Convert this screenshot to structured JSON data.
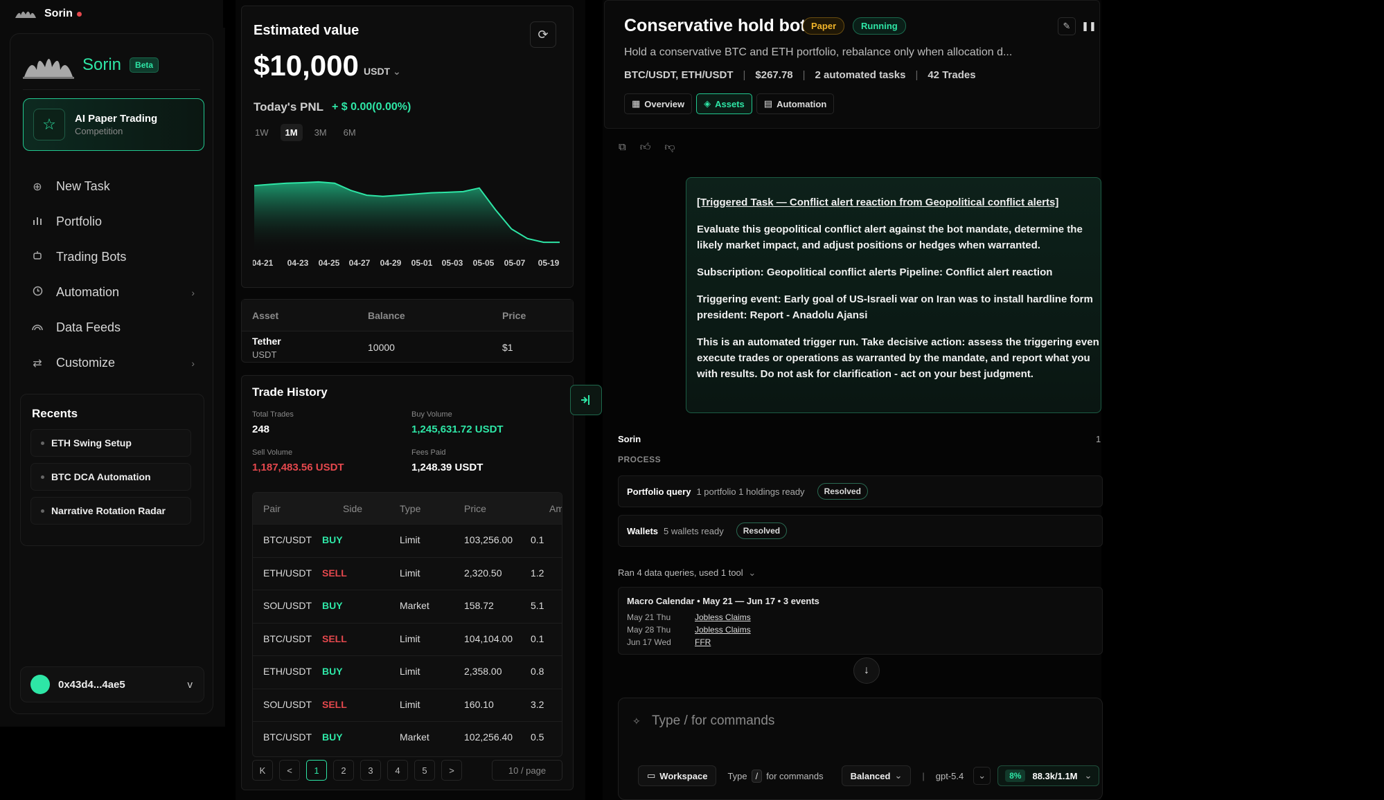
{
  "app": {
    "brand": "Sorin"
  },
  "sidebar": {
    "name": "Sorin",
    "beta": "Beta",
    "promo": {
      "title": "AI Paper Trading",
      "subtitle": "Competition"
    },
    "nav": [
      {
        "label": "New Task",
        "icon": "plus-circle-icon"
      },
      {
        "label": "Portfolio",
        "icon": "bar-chart-icon"
      },
      {
        "label": "Trading Bots",
        "icon": "bot-icon"
      },
      {
        "label": "Automation",
        "icon": "clock-icon",
        "chevron": "›"
      },
      {
        "label": "Data Feeds",
        "icon": "feed-icon"
      },
      {
        "label": "Customize",
        "icon": "sliders-icon",
        "chevron": "›"
      }
    ],
    "recents_title": "Recents",
    "recents": [
      "ETH Swing Setup",
      "BTC DCA Automation",
      "Narrative Rotation Radar"
    ],
    "wallet": {
      "address": "0x43d4...4ae5",
      "chevron": "v"
    }
  },
  "estimated": {
    "title": "Estimated value",
    "value": "$10,000",
    "currency": "USDT",
    "pnl_label": "Today's PNL",
    "pnl_value": "+ $ 0.00(0.00%)",
    "ranges": [
      "1W",
      "1M",
      "3M",
      "6M"
    ],
    "active_range": "1M"
  },
  "chart_data": {
    "type": "area",
    "x": [
      "04-21",
      "04-22",
      "04-23",
      "04-24",
      "04-25",
      "04-26",
      "04-27",
      "04-28",
      "04-29",
      "04-30",
      "05-01",
      "05-02",
      "05-03",
      "05-04",
      "05-05",
      "05-06",
      "05-07",
      "05-08",
      "05-09",
      "05-19"
    ],
    "values": [
      10080,
      10085,
      10090,
      10092,
      10095,
      10090,
      10060,
      10040,
      10035,
      10040,
      10045,
      10050,
      10052,
      10055,
      10070,
      9980,
      9900,
      9860,
      9845,
      9845
    ],
    "tick_labels": [
      "04-21",
      "04-23",
      "04-25",
      "04-27",
      "04-29",
      "05-01",
      "05-03",
      "05-05",
      "05-07",
      "05-19"
    ],
    "color": "#2ee6a6",
    "grid": false
  },
  "assets_table": {
    "headers": [
      "Asset",
      "Balance",
      "Price"
    ],
    "rows": [
      {
        "asset": "Tether",
        "symbol": "USDT",
        "balance": "10000",
        "price": "$1"
      }
    ]
  },
  "trade_history": {
    "title": "Trade History",
    "stats": {
      "total_trades_label": "Total Trades",
      "total_trades": "248",
      "buy_volume_label": "Buy Volume",
      "buy_volume": "1,245,631.72 USDT",
      "sell_volume_label": "Sell Volume",
      "sell_volume": "1,187,483.56 USDT",
      "fees_label": "Fees Paid",
      "fees": "1,248.39 USDT"
    },
    "headers": [
      "Pair",
      "Side",
      "Type",
      "Price",
      "Am"
    ],
    "rows": [
      {
        "pair": "BTC/USDT",
        "side": "BUY",
        "type": "Limit",
        "price": "103,256.00",
        "amount": "0.1"
      },
      {
        "pair": "ETH/USDT",
        "side": "SELL",
        "type": "Limit",
        "price": "2,320.50",
        "amount": "1.2"
      },
      {
        "pair": "SOL/USDT",
        "side": "BUY",
        "type": "Market",
        "price": "158.72",
        "amount": "5.1"
      },
      {
        "pair": "BTC/USDT",
        "side": "SELL",
        "type": "Limit",
        "price": "104,104.00",
        "amount": "0.1"
      },
      {
        "pair": "ETH/USDT",
        "side": "BUY",
        "type": "Limit",
        "price": "2,358.00",
        "amount": "0.8"
      },
      {
        "pair": "SOL/USDT",
        "side": "SELL",
        "type": "Limit",
        "price": "160.10",
        "amount": "3.2"
      },
      {
        "pair": "BTC/USDT",
        "side": "BUY",
        "type": "Market",
        "price": "102,256.40",
        "amount": "0.5"
      }
    ],
    "pager": {
      "first": "K",
      "prev": "<",
      "pages": [
        "1",
        "2",
        "3",
        "4",
        "5"
      ],
      "active": "1",
      "next": ">",
      "per_page": "10 / page"
    }
  },
  "bot": {
    "title": "Conservative hold bot",
    "badge_paper": "Paper",
    "badge_running": "Running",
    "description": "Hold a conservative BTC and ETH portfolio, rebalance only when allocation d...",
    "meta": {
      "pairs": "BTC/USDT, ETH/USDT",
      "value": "$267.78",
      "tasks": "2 automated tasks",
      "trades": "42 Trades",
      "sep": "|"
    },
    "tabs": [
      "Overview",
      "Assets",
      "Automation"
    ],
    "active_tab": "Assets"
  },
  "trigger": {
    "title": "[Triggered Task — Conflict alert reaction from Geopolitical conflict alerts]",
    "p1": "Evaluate this geopolitical conflict alert against the bot mandate, determine the\nlikely market impact, and adjust positions or hedges when warranted.",
    "p2": "Subscription: Geopolitical conflict alerts Pipeline: Conflict alert reaction",
    "p3": "Triggering event: Early goal of US-Israeli war on Iran was to install hardline form\npresident: Report - Anadolu Ajansi",
    "p4": "This is an automated trigger run. Take decisive action: assess the triggering even\nexecute trades or operations as warranted by the mandate, and report what you\nwith results. Do not ask for clarification - act on your best judgment."
  },
  "response": {
    "author": "Sorin",
    "counter": "1",
    "process_label": "PROCESS",
    "steps": [
      {
        "key": "Portfolio query",
        "detail": "1 portfolio 1 holdings ready",
        "status": "Resolved"
      },
      {
        "key": "Wallets",
        "detail": "5 wallets ready",
        "status": "Resolved"
      }
    ],
    "ran_queries": "Ran 4 data queries, used 1 tool",
    "macro": {
      "title": "Macro Calendar • May 21 — Jun 17 • 3 events",
      "events": [
        {
          "date": "May 21 Thu",
          "name": "Jobless Claims"
        },
        {
          "date": "May 28 Thu",
          "name": "Jobless Claims"
        },
        {
          "date": "Jun 17 Wed",
          "name": "FFR"
        }
      ]
    }
  },
  "composer": {
    "placeholder": "Type / for commands",
    "workspace": "Workspace",
    "hint_type": "Type",
    "hint_slash": "/",
    "hint_rest": "for commands",
    "mode": "Balanced",
    "sep": "|",
    "model": "gpt-5.4",
    "usage_pct": "8%",
    "usage": "88.3k/1.1M"
  }
}
